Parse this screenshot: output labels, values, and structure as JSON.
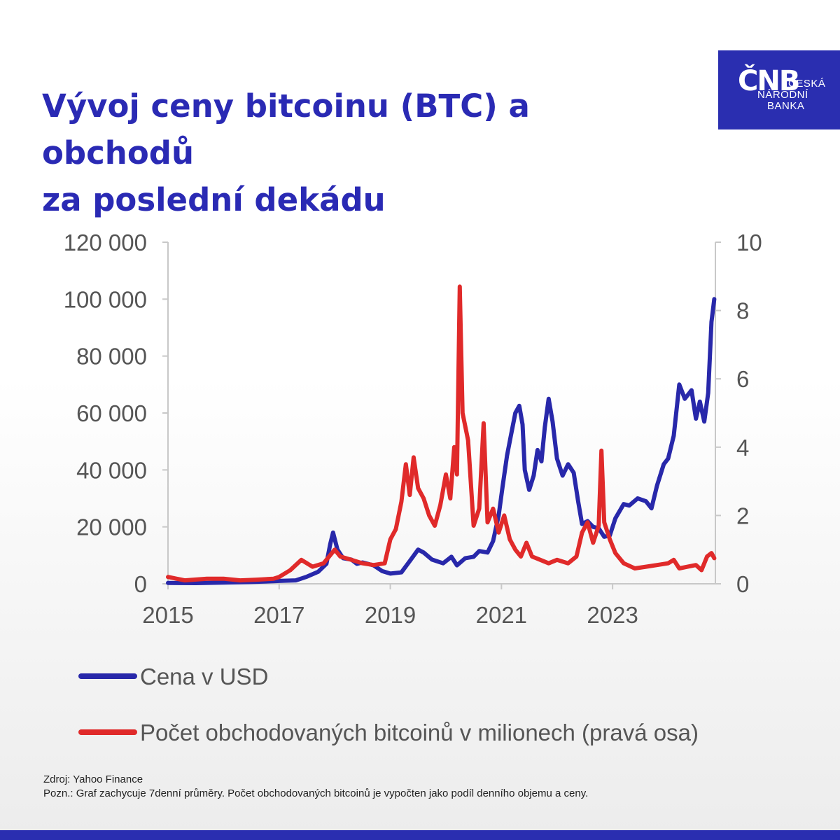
{
  "title": {
    "line1": "Vývoj ceny bitcoinu (BTC) a obchodů",
    "line2": "za poslední dekádu"
  },
  "logo": {
    "mark": "ČNB",
    "name_line1": "ČESKÁ",
    "name_line2": "NÁRODNÍ",
    "name_line3": "BANKA",
    "color": "#2a2eb0"
  },
  "footer": {
    "source": "Zdroj: Yahoo Finance",
    "note": "Pozn.: Graf zachycuje 7denní průměry. Počet obchodovaných bitcoinů je vypočten jako podíl denního objemu a ceny."
  },
  "chart_data": {
    "type": "line",
    "xlim": [
      2015,
      2024.85
    ],
    "x_ticks": [
      2015,
      2017,
      2019,
      2021,
      2023
    ],
    "x_tick_labels": [
      "2015",
      "2017",
      "2019",
      "2021",
      "2023"
    ],
    "y_left": {
      "ylim": [
        0,
        120000
      ],
      "ticks": [
        0,
        20000,
        40000,
        60000,
        80000,
        100000,
        120000
      ],
      "tick_labels": [
        "0",
        "20 000",
        "40 000",
        "60 000",
        "80 000",
        "100 000",
        "120 000"
      ]
    },
    "y_right": {
      "ylim": [
        0,
        10
      ],
      "ticks": [
        0,
        2,
        4,
        6,
        8,
        10
      ],
      "tick_labels": [
        "0",
        "2",
        "4",
        "6",
        "8",
        "10"
      ]
    },
    "grid": false,
    "legend_position": "bottom",
    "series": [
      {
        "name": "Cena v USD",
        "axis": "left",
        "color": "#2828aa",
        "points": [
          [
            2015.0,
            300
          ],
          [
            2015.5,
            250
          ],
          [
            2016.0,
            430
          ],
          [
            2016.5,
            650
          ],
          [
            2016.9,
            900
          ],
          [
            2017.0,
            1000
          ],
          [
            2017.3,
            1200
          ],
          [
            2017.5,
            2500
          ],
          [
            2017.7,
            4200
          ],
          [
            2017.85,
            7000
          ],
          [
            2017.92,
            14000
          ],
          [
            2017.97,
            18000
          ],
          [
            2018.05,
            12000
          ],
          [
            2018.15,
            9000
          ],
          [
            2018.3,
            8500
          ],
          [
            2018.4,
            7000
          ],
          [
            2018.5,
            7500
          ],
          [
            2018.7,
            6500
          ],
          [
            2018.85,
            4500
          ],
          [
            2019.0,
            3600
          ],
          [
            2019.2,
            4000
          ],
          [
            2019.35,
            8000
          ],
          [
            2019.5,
            12000
          ],
          [
            2019.6,
            11000
          ],
          [
            2019.75,
            8500
          ],
          [
            2019.95,
            7200
          ],
          [
            2020.1,
            9500
          ],
          [
            2020.2,
            6500
          ],
          [
            2020.35,
            9000
          ],
          [
            2020.5,
            9500
          ],
          [
            2020.6,
            11500
          ],
          [
            2020.75,
            11000
          ],
          [
            2020.85,
            15000
          ],
          [
            2020.95,
            24000
          ],
          [
            2021.02,
            34000
          ],
          [
            2021.1,
            45000
          ],
          [
            2021.17,
            52000
          ],
          [
            2021.25,
            60000
          ],
          [
            2021.32,
            62500
          ],
          [
            2021.38,
            56000
          ],
          [
            2021.42,
            40000
          ],
          [
            2021.5,
            33000
          ],
          [
            2021.58,
            38000
          ],
          [
            2021.65,
            47000
          ],
          [
            2021.72,
            43000
          ],
          [
            2021.78,
            55000
          ],
          [
            2021.85,
            65000
          ],
          [
            2021.92,
            57000
          ],
          [
            2022.0,
            44000
          ],
          [
            2022.1,
            38000
          ],
          [
            2022.2,
            42000
          ],
          [
            2022.3,
            39000
          ],
          [
            2022.38,
            29000
          ],
          [
            2022.45,
            21000
          ],
          [
            2022.55,
            22000
          ],
          [
            2022.65,
            20000
          ],
          [
            2022.75,
            19500
          ],
          [
            2022.85,
            16500
          ],
          [
            2022.95,
            17000
          ],
          [
            2023.05,
            23000
          ],
          [
            2023.2,
            28000
          ],
          [
            2023.3,
            27500
          ],
          [
            2023.45,
            30000
          ],
          [
            2023.6,
            29000
          ],
          [
            2023.7,
            26500
          ],
          [
            2023.8,
            34500
          ],
          [
            2023.92,
            42000
          ],
          [
            2024.0,
            44000
          ],
          [
            2024.1,
            52000
          ],
          [
            2024.2,
            70000
          ],
          [
            2024.3,
            65000
          ],
          [
            2024.42,
            68000
          ],
          [
            2024.5,
            58000
          ],
          [
            2024.57,
            64000
          ],
          [
            2024.65,
            57000
          ],
          [
            2024.72,
            67000
          ],
          [
            2024.78,
            92000
          ],
          [
            2024.83,
            100000
          ]
        ]
      },
      {
        "name": "Počet obchodovaných bitcoinů v milionech (pravá osa)",
        "axis": "right",
        "color": "#e02a2a",
        "points": [
          [
            2015.0,
            0.2
          ],
          [
            2015.3,
            0.1
          ],
          [
            2015.7,
            0.15
          ],
          [
            2016.0,
            0.15
          ],
          [
            2016.3,
            0.1
          ],
          [
            2016.6,
            0.12
          ],
          [
            2016.9,
            0.15
          ],
          [
            2017.0,
            0.2
          ],
          [
            2017.2,
            0.4
          ],
          [
            2017.4,
            0.7
          ],
          [
            2017.6,
            0.5
          ],
          [
            2017.8,
            0.6
          ],
          [
            2018.0,
            1.0
          ],
          [
            2018.1,
            0.8
          ],
          [
            2018.3,
            0.7
          ],
          [
            2018.5,
            0.6
          ],
          [
            2018.7,
            0.55
          ],
          [
            2018.9,
            0.6
          ],
          [
            2019.0,
            1.3
          ],
          [
            2019.1,
            1.6
          ],
          [
            2019.2,
            2.4
          ],
          [
            2019.28,
            3.5
          ],
          [
            2019.35,
            2.6
          ],
          [
            2019.42,
            3.7
          ],
          [
            2019.5,
            2.8
          ],
          [
            2019.6,
            2.5
          ],
          [
            2019.7,
            2.0
          ],
          [
            2019.8,
            1.7
          ],
          [
            2019.9,
            2.3
          ],
          [
            2020.0,
            3.2
          ],
          [
            2020.08,
            2.5
          ],
          [
            2020.15,
            4.0
          ],
          [
            2020.2,
            3.2
          ],
          [
            2020.25,
            8.7
          ],
          [
            2020.3,
            5.0
          ],
          [
            2020.4,
            4.2
          ],
          [
            2020.5,
            1.7
          ],
          [
            2020.6,
            2.2
          ],
          [
            2020.68,
            4.7
          ],
          [
            2020.75,
            1.8
          ],
          [
            2020.85,
            2.2
          ],
          [
            2020.95,
            1.5
          ],
          [
            2021.05,
            2.0
          ],
          [
            2021.15,
            1.3
          ],
          [
            2021.25,
            1.0
          ],
          [
            2021.35,
            0.8
          ],
          [
            2021.45,
            1.2
          ],
          [
            2021.55,
            0.8
          ],
          [
            2021.7,
            0.7
          ],
          [
            2021.85,
            0.6
          ],
          [
            2022.0,
            0.7
          ],
          [
            2022.2,
            0.6
          ],
          [
            2022.35,
            0.8
          ],
          [
            2022.45,
            1.5
          ],
          [
            2022.55,
            1.8
          ],
          [
            2022.65,
            1.2
          ],
          [
            2022.75,
            1.7
          ],
          [
            2022.8,
            3.9
          ],
          [
            2022.85,
            1.8
          ],
          [
            2022.95,
            1.3
          ],
          [
            2023.05,
            0.9
          ],
          [
            2023.2,
            0.6
          ],
          [
            2023.4,
            0.45
          ],
          [
            2023.6,
            0.5
          ],
          [
            2023.8,
            0.55
          ],
          [
            2024.0,
            0.6
          ],
          [
            2024.1,
            0.7
          ],
          [
            2024.2,
            0.45
          ],
          [
            2024.35,
            0.5
          ],
          [
            2024.5,
            0.55
          ],
          [
            2024.6,
            0.4
          ],
          [
            2024.7,
            0.8
          ],
          [
            2024.78,
            0.9
          ],
          [
            2024.83,
            0.75
          ]
        ]
      }
    ]
  }
}
